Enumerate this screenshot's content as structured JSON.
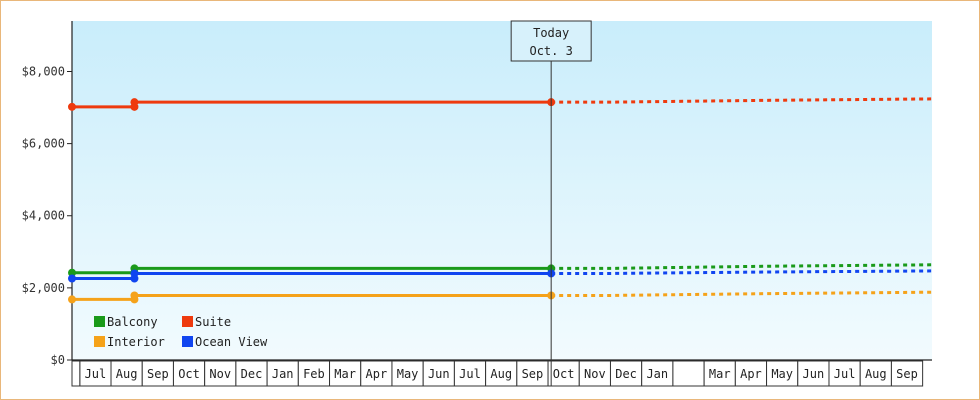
{
  "chart_data": {
    "type": "line",
    "title": "",
    "xlabel": "",
    "ylabel": "",
    "ylim": [
      0,
      9400
    ],
    "y_ticks": [
      {
        "value": 0,
        "label": "$0"
      },
      {
        "value": 2000,
        "label": "$2,000"
      },
      {
        "value": 4000,
        "label": "$4,000"
      },
      {
        "value": 6000,
        "label": "$6,000"
      },
      {
        "value": 8000,
        "label": "$8,000"
      }
    ],
    "months": [
      "Jul",
      "Aug",
      "Sep",
      "Oct",
      "Nov",
      "Dec",
      "Jan",
      "Feb",
      "Mar",
      "Apr",
      "May",
      "Jun",
      "Jul",
      "Aug",
      "Sep",
      "Oct",
      "Nov",
      "Dec",
      "Jan",
      "",
      "Mar",
      "Apr",
      "May",
      "Jun",
      "Jul",
      "Aug",
      "Sep"
    ],
    "today": {
      "line1": "Today",
      "line2": "Oct. 3",
      "x": 15.1
    },
    "x_domain": [
      -0.25,
      27.3
    ],
    "legend_position": "bottom-left",
    "grid": false,
    "series": [
      {
        "name": "Balcony",
        "color": "#1a9a1a",
        "actual": [
          [
            -0.25,
            2420
          ],
          [
            1.75,
            2420
          ],
          [
            1.75,
            2540
          ],
          [
            15.1,
            2540
          ]
        ],
        "markers": [
          [
            -0.25,
            2420
          ],
          [
            1.75,
            2420
          ],
          [
            1.75,
            2540
          ],
          [
            15.1,
            2540
          ]
        ],
        "forecast": [
          [
            15.1,
            2540
          ],
          [
            17.0,
            2540
          ],
          [
            22.0,
            2600
          ],
          [
            27.3,
            2640
          ]
        ]
      },
      {
        "name": "Suite",
        "color": "#ee3a0e",
        "actual": [
          [
            -0.25,
            7020
          ],
          [
            1.75,
            7020
          ],
          [
            1.75,
            7150
          ],
          [
            15.1,
            7150
          ]
        ],
        "markers": [
          [
            -0.25,
            7020
          ],
          [
            1.75,
            7020
          ],
          [
            1.75,
            7150
          ],
          [
            15.1,
            7150
          ]
        ],
        "forecast": [
          [
            15.1,
            7150
          ],
          [
            17.0,
            7150
          ],
          [
            22.0,
            7200
          ],
          [
            27.3,
            7240
          ]
        ]
      },
      {
        "name": "Interior",
        "color": "#f5a21a",
        "actual": [
          [
            -0.25,
            1680
          ],
          [
            1.75,
            1680
          ],
          [
            1.75,
            1790
          ],
          [
            15.1,
            1790
          ]
        ],
        "markers": [
          [
            -0.25,
            1680
          ],
          [
            1.75,
            1680
          ],
          [
            1.75,
            1790
          ],
          [
            15.1,
            1790
          ]
        ],
        "forecast": [
          [
            15.1,
            1790
          ],
          [
            17.0,
            1790
          ],
          [
            22.0,
            1840
          ],
          [
            27.3,
            1880
          ]
        ]
      },
      {
        "name": "Ocean View",
        "color": "#1045f0",
        "actual": [
          [
            -0.25,
            2260
          ],
          [
            1.75,
            2260
          ],
          [
            1.75,
            2400
          ],
          [
            15.1,
            2400
          ]
        ],
        "markers": [
          [
            -0.25,
            2260
          ],
          [
            1.75,
            2260
          ],
          [
            1.75,
            2400
          ],
          [
            15.1,
            2400
          ]
        ],
        "forecast": [
          [
            15.1,
            2400
          ],
          [
            17.0,
            2400
          ],
          [
            22.0,
            2440
          ],
          [
            27.3,
            2470
          ]
        ]
      }
    ],
    "legend": [
      {
        "name": "Balcony",
        "color": "#1a9a1a"
      },
      {
        "name": "Suite",
        "color": "#ee3a0e"
      },
      {
        "name": "Interior",
        "color": "#f5a21a"
      },
      {
        "name": "Ocean View",
        "color": "#1045f0"
      }
    ]
  }
}
